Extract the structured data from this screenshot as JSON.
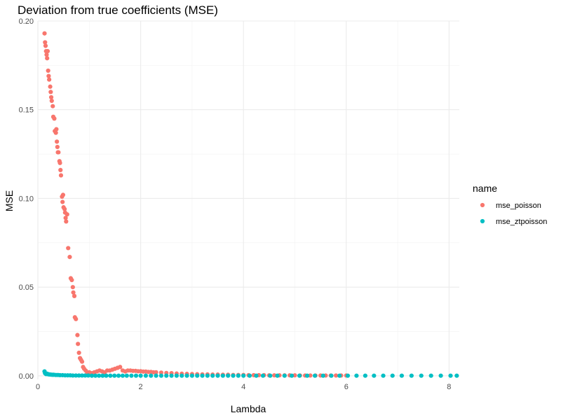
{
  "chart_data": {
    "type": "scatter",
    "title": "Deviation from true coefficients (MSE)",
    "xlabel": "Lambda",
    "ylabel": "MSE",
    "xlim": [
      0,
      8.2
    ],
    "ylim": [
      -0.002,
      0.2
    ],
    "x_ticks": [
      0,
      2,
      4,
      6,
      8
    ],
    "y_ticks": [
      0,
      0.05,
      0.1,
      0.15,
      0.2
    ],
    "x_tick_labels": [
      "0",
      "2",
      "4",
      "6",
      "8"
    ],
    "y_tick_labels": [
      "0.00",
      "0.05",
      "0.10",
      "0.15",
      "0.20"
    ],
    "grid": true,
    "legend": {
      "title": "name",
      "position": "right"
    },
    "series": [
      {
        "name": "mse_poisson",
        "color": "#F8766D",
        "points": [
          [
            0.13,
            0.193
          ],
          [
            0.14,
            0.188
          ],
          [
            0.15,
            0.186
          ],
          [
            0.16,
            0.183
          ],
          [
            0.17,
            0.181
          ],
          [
            0.18,
            0.179
          ],
          [
            0.19,
            0.183
          ],
          [
            0.2,
            0.172
          ],
          [
            0.21,
            0.169
          ],
          [
            0.22,
            0.167
          ],
          [
            0.24,
            0.163
          ],
          [
            0.25,
            0.16
          ],
          [
            0.26,
            0.157
          ],
          [
            0.27,
            0.155
          ],
          [
            0.29,
            0.152
          ],
          [
            0.3,
            0.146
          ],
          [
            0.32,
            0.145
          ],
          [
            0.33,
            0.138
          ],
          [
            0.35,
            0.137
          ],
          [
            0.36,
            0.139
          ],
          [
            0.37,
            0.132
          ],
          [
            0.38,
            0.129
          ],
          [
            0.39,
            0.126
          ],
          [
            0.4,
            0.126
          ],
          [
            0.42,
            0.121
          ],
          [
            0.43,
            0.12
          ],
          [
            0.44,
            0.116
          ],
          [
            0.45,
            0.113
          ],
          [
            0.47,
            0.101
          ],
          [
            0.48,
            0.098
          ],
          [
            0.49,
            0.102
          ],
          [
            0.5,
            0.095
          ],
          [
            0.52,
            0.094
          ],
          [
            0.53,
            0.092
          ],
          [
            0.54,
            0.089
          ],
          [
            0.55,
            0.087
          ],
          [
            0.57,
            0.091
          ],
          [
            0.59,
            0.072
          ],
          [
            0.62,
            0.067
          ],
          [
            0.64,
            0.055
          ],
          [
            0.66,
            0.054
          ],
          [
            0.68,
            0.05
          ],
          [
            0.69,
            0.047
          ],
          [
            0.71,
            0.045
          ],
          [
            0.72,
            0.033
          ],
          [
            0.74,
            0.032
          ],
          [
            0.77,
            0.023
          ],
          [
            0.78,
            0.018
          ],
          [
            0.8,
            0.013
          ],
          [
            0.82,
            0.01
          ],
          [
            0.84,
            0.009
          ],
          [
            0.86,
            0.008
          ],
          [
            0.88,
            0.005
          ],
          [
            0.9,
            0.004
          ],
          [
            0.93,
            0.003
          ],
          [
            0.96,
            0.002
          ],
          [
            1.0,
            0.002
          ],
          [
            1.05,
            0.0015
          ],
          [
            1.1,
            0.002
          ],
          [
            1.15,
            0.0025
          ],
          [
            1.2,
            0.003
          ],
          [
            1.25,
            0.0025
          ],
          [
            1.3,
            0.002
          ],
          [
            1.35,
            0.003
          ],
          [
            1.4,
            0.003
          ],
          [
            1.45,
            0.0035
          ],
          [
            1.5,
            0.004
          ],
          [
            1.55,
            0.0045
          ],
          [
            1.6,
            0.005
          ],
          [
            1.65,
            0.003
          ],
          [
            1.7,
            0.0025
          ],
          [
            1.75,
            0.003
          ],
          [
            1.8,
            0.003
          ],
          [
            1.85,
            0.0028
          ],
          [
            1.9,
            0.0028
          ],
          [
            1.95,
            0.0026
          ],
          [
            2.0,
            0.0026
          ],
          [
            2.05,
            0.0024
          ],
          [
            2.1,
            0.0024
          ],
          [
            2.15,
            0.0022
          ],
          [
            2.2,
            0.0022
          ],
          [
            2.25,
            0.002
          ],
          [
            2.3,
            0.002
          ],
          [
            2.4,
            0.0018
          ],
          [
            2.5,
            0.0016
          ],
          [
            2.6,
            0.0015
          ],
          [
            2.7,
            0.0013
          ],
          [
            2.8,
            0.0012
          ],
          [
            2.9,
            0.0011
          ],
          [
            3.0,
            0.001
          ],
          [
            3.1,
            0.0009
          ],
          [
            3.2,
            0.0008
          ],
          [
            3.3,
            0.0008
          ],
          [
            3.4,
            0.0007
          ],
          [
            3.5,
            0.0007
          ],
          [
            3.6,
            0.0006
          ],
          [
            3.7,
            0.0006
          ],
          [
            3.8,
            0.0005
          ],
          [
            3.9,
            0.0005
          ],
          [
            4.0,
            0.0005
          ],
          [
            4.1,
            0.0004
          ],
          [
            4.2,
            0.0004
          ],
          [
            4.3,
            0.0004
          ],
          [
            4.4,
            0.0004
          ],
          [
            4.5,
            0.0003
          ],
          [
            4.6,
            0.0003
          ],
          [
            4.7,
            0.0003
          ],
          [
            4.8,
            0.0003
          ],
          [
            4.9,
            0.0003
          ],
          [
            5.0,
            0.0003
          ],
          [
            5.1,
            0.0002
          ],
          [
            5.2,
            0.0002
          ],
          [
            5.3,
            0.0002
          ],
          [
            5.4,
            0.0002
          ],
          [
            5.5,
            0.0002
          ],
          [
            5.6,
            0.0002
          ],
          [
            5.7,
            0.0002
          ],
          [
            5.8,
            0.0002
          ],
          [
            5.9,
            0.0002
          ],
          [
            6.0,
            0.0002
          ]
        ]
      },
      {
        "name": "mse_ztpoisson",
        "color": "#00BFC4",
        "points": [
          [
            0.13,
            0.0025
          ],
          [
            0.14,
            0.0015
          ],
          [
            0.16,
            0.001
          ],
          [
            0.18,
            0.0012
          ],
          [
            0.2,
            0.0009
          ],
          [
            0.22,
            0.0008
          ],
          [
            0.25,
            0.0007
          ],
          [
            0.28,
            0.0006
          ],
          [
            0.31,
            0.0006
          ],
          [
            0.35,
            0.0005
          ],
          [
            0.39,
            0.0005
          ],
          [
            0.43,
            0.0004
          ],
          [
            0.48,
            0.0004
          ],
          [
            0.53,
            0.0003
          ],
          [
            0.58,
            0.0003
          ],
          [
            0.63,
            0.0003
          ],
          [
            0.68,
            0.0002
          ],
          [
            0.74,
            0.0002
          ],
          [
            0.8,
            0.0002
          ],
          [
            0.86,
            0.0002
          ],
          [
            0.92,
            0.0002
          ],
          [
            0.98,
            0.0002
          ],
          [
            1.05,
            0.0001
          ],
          [
            1.12,
            0.0001
          ],
          [
            1.19,
            0.0001
          ],
          [
            1.26,
            0.0001
          ],
          [
            1.33,
            0.0001
          ],
          [
            1.41,
            0.0001
          ],
          [
            1.49,
            0.0001
          ],
          [
            1.57,
            0.0001
          ],
          [
            1.65,
            0.0001
          ],
          [
            1.73,
            0.0001
          ],
          [
            1.82,
            0.0001
          ],
          [
            1.91,
            0.0001
          ],
          [
            2.0,
            0.0001
          ],
          [
            2.1,
            0.0001
          ],
          [
            2.2,
            0.0001
          ],
          [
            2.3,
            0.0001
          ],
          [
            2.4,
            0.0001
          ],
          [
            2.5,
            0.0001
          ],
          [
            2.6,
            0.0001
          ],
          [
            2.7,
            0.0001
          ],
          [
            2.8,
            0.0001
          ],
          [
            2.9,
            0.0001
          ],
          [
            3.0,
            0.0001
          ],
          [
            3.1,
            0.0001
          ],
          [
            3.2,
            0.0001
          ],
          [
            3.3,
            0.0001
          ],
          [
            3.4,
            0.0001
          ],
          [
            3.5,
            0.0001
          ],
          [
            3.6,
            0.0001
          ],
          [
            3.7,
            0.0001
          ],
          [
            3.8,
            0.0001
          ],
          [
            3.9,
            0.0001
          ],
          [
            4.0,
            0.0001
          ],
          [
            4.12,
            0.0001
          ],
          [
            4.25,
            0.0001
          ],
          [
            4.38,
            0.0001
          ],
          [
            4.52,
            0.0001
          ],
          [
            4.66,
            0.0001
          ],
          [
            4.8,
            0.0001
          ],
          [
            4.94,
            0.0001
          ],
          [
            5.09,
            0.0001
          ],
          [
            5.24,
            0.0001
          ],
          [
            5.39,
            0.0001
          ],
          [
            5.55,
            0.0001
          ],
          [
            5.71,
            0.0001
          ],
          [
            5.87,
            0.0001
          ],
          [
            6.03,
            0.0001
          ],
          [
            6.2,
            0.0001
          ],
          [
            6.37,
            0.0001
          ],
          [
            6.54,
            0.0001
          ],
          [
            6.72,
            0.0001
          ],
          [
            6.9,
            0.0001
          ],
          [
            7.08,
            0.0001
          ],
          [
            7.27,
            0.0001
          ],
          [
            7.46,
            0.0001
          ],
          [
            7.65,
            0.0001
          ],
          [
            7.84,
            0.0001
          ],
          [
            8.03,
            0.0001
          ],
          [
            8.15,
            0.0001
          ]
        ]
      }
    ]
  }
}
